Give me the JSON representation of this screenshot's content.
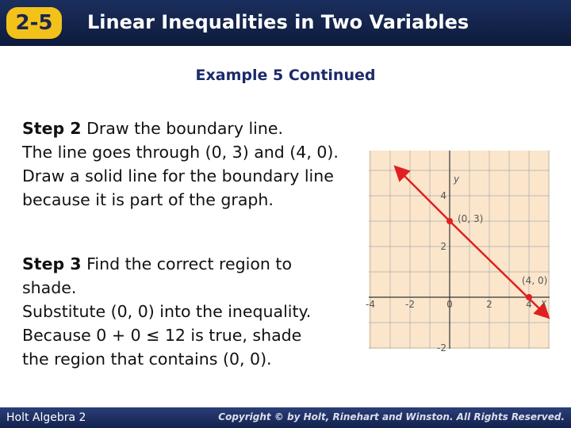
{
  "header": {
    "badge": "2-5",
    "title": "Linear Inequalities in Two Variables"
  },
  "subtitle": "Example 5 Continued",
  "step2": {
    "label": "Step 2",
    "lead": "Draw the boundary line.",
    "text": "The line goes through (0, 3) and (4, 0). Draw a solid line for the boundary line because it is part of the graph."
  },
  "step3": {
    "label": "Step 3",
    "lead": "Find the correct region to shade.",
    "text": "Substitute (0, 0) into the inequality. Because 0 + 0 ≤ 12 is true, shade the region that contains (0, 0)."
  },
  "graph": {
    "xticks": [
      -4,
      -2,
      0,
      2,
      4
    ],
    "yticks": [
      4,
      2,
      -2
    ],
    "x_label": "x",
    "y_label": "y",
    "point_labels": [
      "(0, 3)",
      "(4, 0)"
    ]
  },
  "footer": {
    "left": "Holt Algebra 2",
    "right": "Copyright © by Holt, Rinehart and Winston. All Rights Reserved."
  }
}
